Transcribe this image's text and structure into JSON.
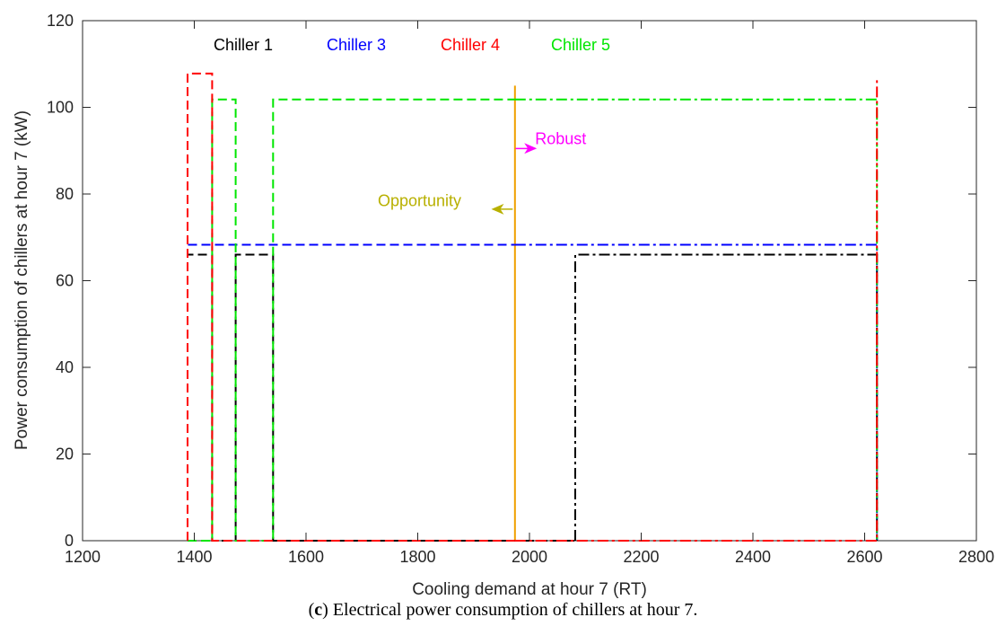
{
  "caption": {
    "open": "(",
    "letter": "c",
    "text": ") Electrical power consumption of chillers at hour 7."
  },
  "chart_data": {
    "type": "line",
    "xlabel": "Cooling demand at hour 7 (RT)",
    "ylabel": "Power consumption of chillers at hour 7 (kW)",
    "xlim": [
      1200,
      2800
    ],
    "ylim": [
      0,
      120
    ],
    "xticks": [
      1200,
      1400,
      1600,
      1800,
      2000,
      2200,
      2400,
      2600,
      2800
    ],
    "yticks": [
      0,
      20,
      40,
      60,
      80,
      100,
      120
    ],
    "grid": false,
    "legend": [
      {
        "label": "Chiller 1",
        "color": "#000000"
      },
      {
        "label": "Chiller 3",
        "color": "#0000ff"
      },
      {
        "label": "Chiller 4",
        "color": "#ff0000"
      },
      {
        "label": "Chiller 5",
        "color": "#00e600"
      }
    ],
    "series": [
      {
        "name": "Chiller 1",
        "color": "#000000",
        "segments": [
          {
            "style": "dashed",
            "x": [
              1388,
              1388,
              1432,
              1432,
              1474,
              1474,
              1541,
              1541,
              2082
            ],
            "y": [
              0,
              66,
              66,
              0,
              0,
              66,
              66,
              0,
              0
            ]
          },
          {
            "style": "dashdot",
            "x": [
              2082,
              2082,
              2622,
              2622
            ],
            "y": [
              0,
              66,
              66,
              0
            ]
          }
        ]
      },
      {
        "name": "Chiller 3",
        "color": "#0000ff",
        "segments": [
          {
            "style": "dashed",
            "x": [
              1388,
              1388,
              1974
            ],
            "y": [
              0,
              68.3,
              68.3
            ]
          },
          {
            "style": "dashdot",
            "x": [
              1974,
              2622,
              2622
            ],
            "y": [
              68.3,
              68.3,
              0
            ]
          }
        ]
      },
      {
        "name": "Chiller 5",
        "color": "#00e600",
        "segments": [
          {
            "style": "dashed",
            "x": [
              1388,
              1388,
              1432,
              1432,
              1474,
              1474,
              1541,
              1541,
              1974
            ],
            "y": [
              0,
              0,
              0,
              101.8,
              101.8,
              0,
              0,
              101.8,
              101.8
            ]
          },
          {
            "style": "dashdot",
            "x": [
              1974,
              2622,
              2622
            ],
            "y": [
              101.8,
              101.8,
              0
            ]
          }
        ]
      },
      {
        "name": "Chiller 4",
        "color": "#ff0000",
        "segments": [
          {
            "style": "dashed",
            "x": [
              1388,
              1388,
              1432,
              1432,
              1974
            ],
            "y": [
              0,
              107.8,
              107.8,
              0,
              0
            ]
          },
          {
            "style": "dashdot",
            "x": [
              1974,
              2622,
              2622
            ],
            "y": [
              0,
              0,
              107
            ]
          }
        ]
      }
    ],
    "vline": {
      "x": 1974,
      "y": [
        0,
        105
      ],
      "color": "#f0a000"
    },
    "annotations": [
      {
        "label": "Robust",
        "color": "#ff00ff",
        "x": 2010,
        "y": 91.5,
        "arrow_from": [
          1975,
          90.5
        ],
        "arrow_to": [
          2010,
          90.5
        ]
      },
      {
        "label": "Opportunity",
        "color": "#b8b000",
        "x": 1878,
        "y": 77.2,
        "arrow_from": [
          1970,
          76.5
        ],
        "arrow_to": [
          1935,
          76.5
        ]
      }
    ]
  }
}
